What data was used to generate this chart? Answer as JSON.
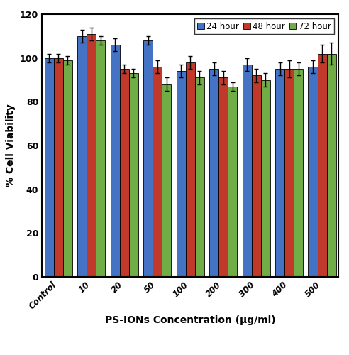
{
  "categories": [
    "Control",
    "10",
    "20",
    "50",
    "100",
    "200",
    "300",
    "400",
    "500"
  ],
  "values_24h": [
    100,
    110,
    106,
    108,
    94,
    95,
    97,
    95,
    96
  ],
  "values_48h": [
    100,
    111,
    95,
    96,
    98,
    91,
    92,
    95,
    102
  ],
  "values_72h": [
    99,
    108,
    93,
    88,
    91,
    87,
    90,
    95,
    102
  ],
  "errors_24h": [
    2,
    3,
    3,
    2,
    3,
    3,
    3,
    3,
    3
  ],
  "errors_48h": [
    2,
    3,
    2,
    3,
    3,
    3,
    3,
    4,
    4
  ],
  "errors_72h": [
    2,
    2,
    2,
    3,
    3,
    2,
    3,
    3,
    5
  ],
  "color_24h": "#4472C4",
  "color_48h": "#C0392B",
  "color_72h": "#70AD47",
  "xlabel": "PS-IONs Concentration (µg/ml)",
  "ylabel": "% Cell Viability",
  "ylim": [
    0,
    120
  ],
  "yticks": [
    0,
    20,
    40,
    60,
    80,
    100,
    120
  ],
  "legend_labels": [
    "24 hour",
    "48 hour",
    "72 hour"
  ],
  "bar_width": 0.28,
  "edgecolor": "black",
  "figsize": [
    4.92,
    5.0
  ],
  "dpi": 100
}
